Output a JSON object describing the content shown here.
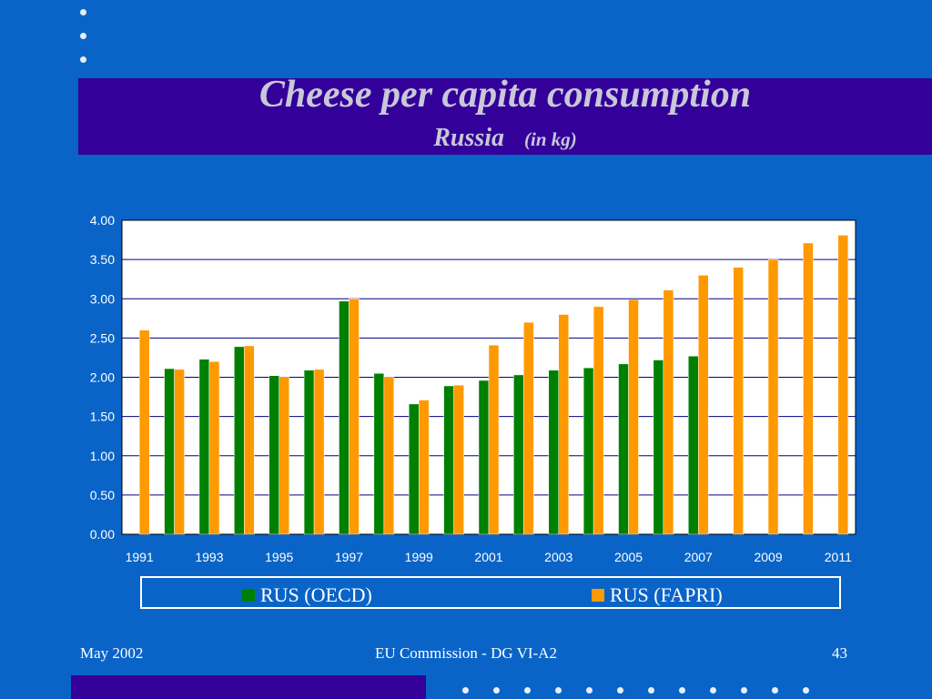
{
  "slide": {
    "title": "Cheese per capita consumption",
    "subtitle": "Russia",
    "unit_note": "(in kg)",
    "footer_left": "May 2002",
    "footer_center": "EU Commission - DG VI-A2",
    "page_number": "43"
  },
  "colors": {
    "background": "#0a64c8",
    "title_band": "#330099",
    "oecd": "#008000",
    "fapri": "#ff9900",
    "gridline": "#000080"
  },
  "chart_data": {
    "type": "bar",
    "categories": [
      "1991",
      "1992",
      "1993",
      "1994",
      "1995",
      "1996",
      "1997",
      "1998",
      "1999",
      "2000",
      "2001",
      "2002",
      "2003",
      "2004",
      "2005",
      "2006",
      "2007",
      "2008",
      "2009",
      "2010",
      "2011"
    ],
    "x_tick_labels": [
      "1991",
      "1993",
      "1995",
      "1997",
      "1999",
      "2001",
      "2003",
      "2005",
      "2007",
      "2009",
      "2011"
    ],
    "y_tick_labels": [
      "0.00",
      "0.50",
      "1.00",
      "1.50",
      "2.00",
      "2.50",
      "3.00",
      "3.50",
      "4.00"
    ],
    "ylim": [
      0,
      4
    ],
    "grid": true,
    "legend_position": "bottom",
    "series": [
      {
        "name": "RUS (OECD)",
        "color": "#008000",
        "values": [
          null,
          2.11,
          2.23,
          2.39,
          2.02,
          2.09,
          2.97,
          2.05,
          1.66,
          1.89,
          1.96,
          2.03,
          2.09,
          2.12,
          2.17,
          2.22,
          2.27,
          null,
          null,
          null,
          null
        ]
      },
      {
        "name": "RUS (FAPRI)",
        "color": "#ff9900",
        "values": [
          2.6,
          2.1,
          2.2,
          2.4,
          2.0,
          2.1,
          3.0,
          2.0,
          1.71,
          1.9,
          2.41,
          2.7,
          2.8,
          2.9,
          2.99,
          3.11,
          3.3,
          3.4,
          3.5,
          3.71,
          3.81
        ]
      }
    ]
  }
}
